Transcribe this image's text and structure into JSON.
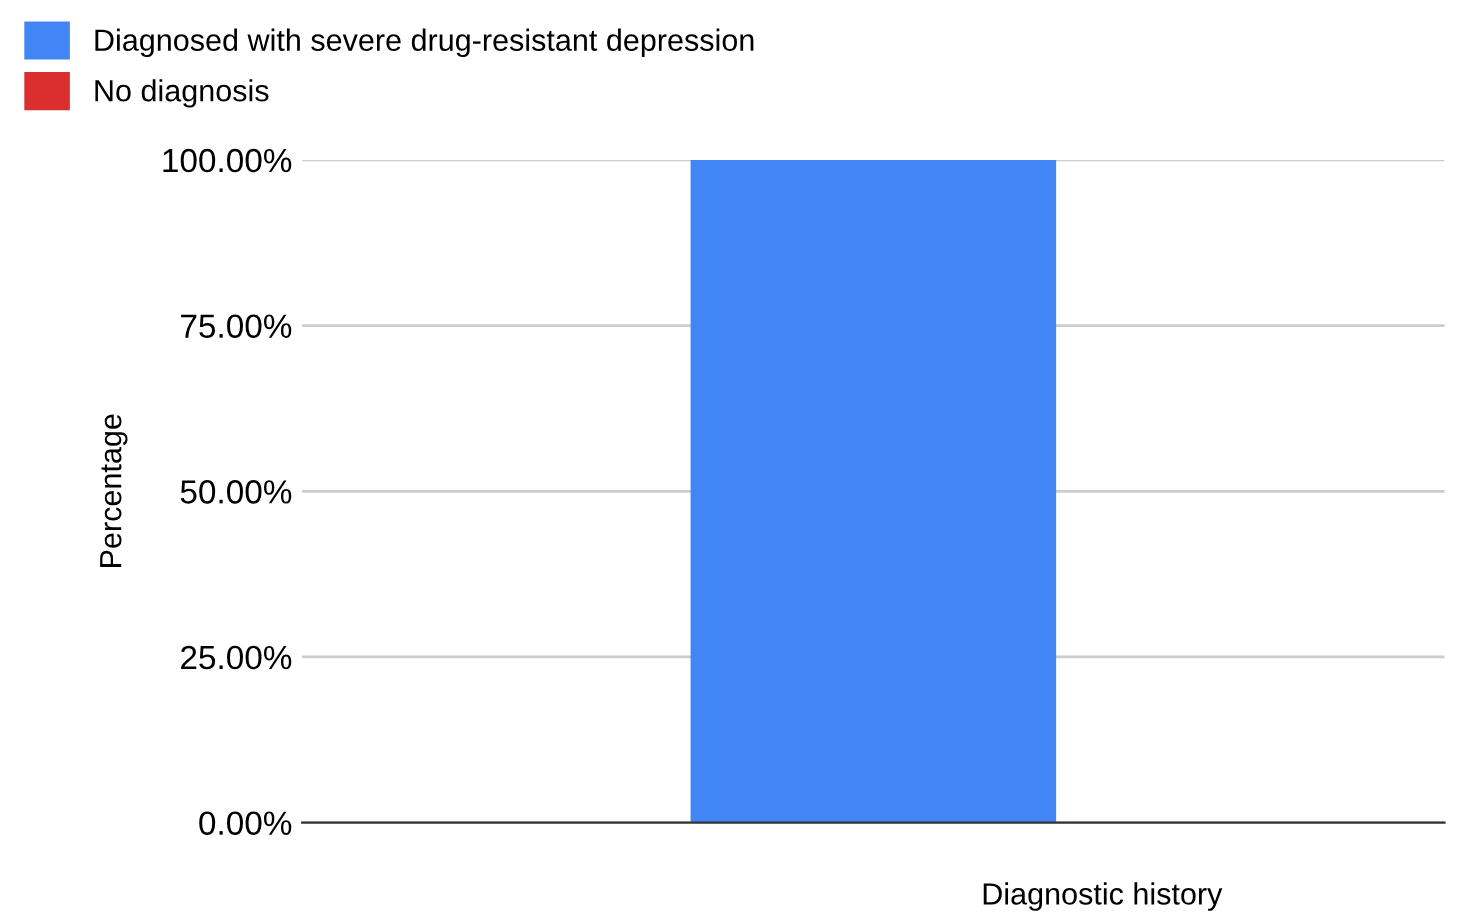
{
  "chart_data": {
    "type": "bar",
    "xlabel": "Diagnostic history",
    "ylabel": "Percentage",
    "categories": [
      null
    ],
    "series": [
      {
        "name": "Diagnosed with severe drug-resistant depression",
        "color": "#4285f4",
        "values": [
          100
        ]
      },
      {
        "name": "No diagnosis",
        "color": "#db2f2f",
        "values": [
          0
        ]
      }
    ],
    "ylim": [
      0,
      100
    ],
    "yticks": [
      {
        "value": 0,
        "label": "0.00%"
      },
      {
        "value": 25,
        "label": "25.00%"
      },
      {
        "value": 50,
        "label": "50.00%"
      },
      {
        "value": 75,
        "label": "75.00%"
      },
      {
        "value": 100,
        "label": "100.00%"
      }
    ],
    "grid": "y",
    "legend": "top"
  }
}
